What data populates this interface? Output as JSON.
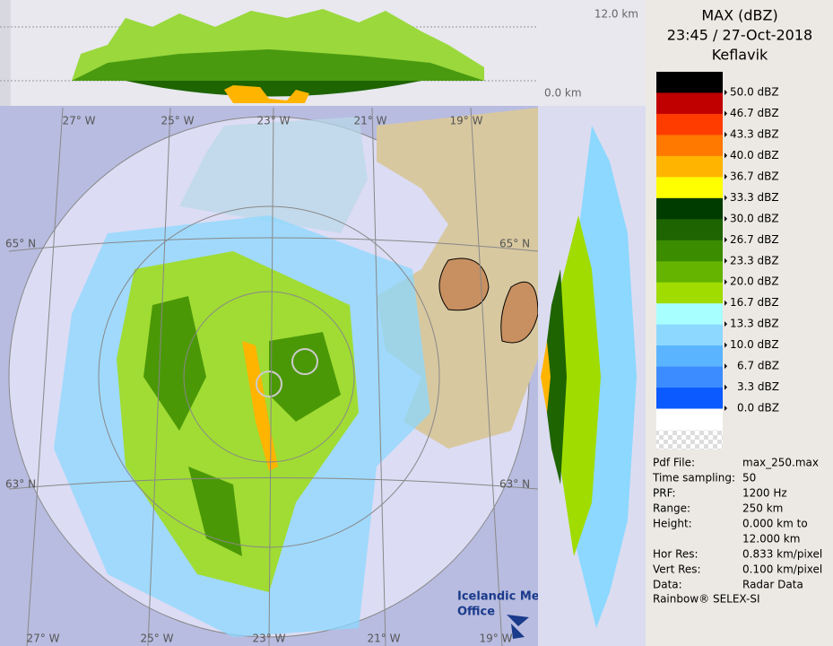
{
  "header": {
    "title": "MAX (dBZ)",
    "time": "23:45 / 27-Oct-2018",
    "site": "Keflavik"
  },
  "legend": {
    "colors": [
      "#000000",
      "#c00000",
      "#ff3c00",
      "#ff7800",
      "#ffb400",
      "#ffff00",
      "#003c00",
      "#1e6400",
      "#3c8c00",
      "#64b400",
      "#a0dc00",
      "#a8ffff",
      "#8cd8ff",
      "#5ab4ff",
      "#3c8cff",
      "#0a5aff",
      "#ffffff"
    ],
    "labels": [
      "50.0 dBZ",
      "46.7 dBZ",
      "43.3 dBZ",
      "40.0 dBZ",
      "36.7 dBZ",
      "33.3 dBZ",
      "30.0 dBZ",
      "26.7 dBZ",
      "23.3 dBZ",
      "20.0 dBZ",
      "16.7 dBZ",
      "13.3 dBZ",
      "10.0 dBZ",
      "6.7 dBZ",
      "3.3 dBZ",
      "0.0 dBZ"
    ]
  },
  "info": [
    {
      "label": "Pdf File:",
      "value": "max_250.max"
    },
    {
      "label": "Time sampling:",
      "value": "50"
    },
    {
      "label": "PRF:",
      "value": "1200 Hz"
    },
    {
      "label": "Range:",
      "value": "250 km"
    },
    {
      "label": "Height:",
      "value": [
        "0.000 km to",
        "12.000 km"
      ]
    },
    {
      "label": "Hor Res:",
      "value": "0.833 km/pixel"
    },
    {
      "label": "Vert Res:",
      "value": "0.100 km/pixel"
    },
    {
      "label": "Data:",
      "value": "Radar Data"
    }
  ],
  "footer": "Rainbow® SELEX-SI",
  "map": {
    "lon_top": [
      "27° W",
      "25° W",
      "23° W",
      "21° W",
      "19° W"
    ],
    "lon_bottom": [
      "27° W",
      "25° W",
      "23° W",
      "21° W",
      "19° W"
    ],
    "lat_left": [
      "65° N",
      "63° N"
    ],
    "lat_right": [
      "65° N",
      "63° N"
    ],
    "logo": [
      "Icelandic Met",
      "Office"
    ]
  },
  "profile": {
    "top_label": "12.0 km",
    "bottom_label": "0.0 km"
  }
}
